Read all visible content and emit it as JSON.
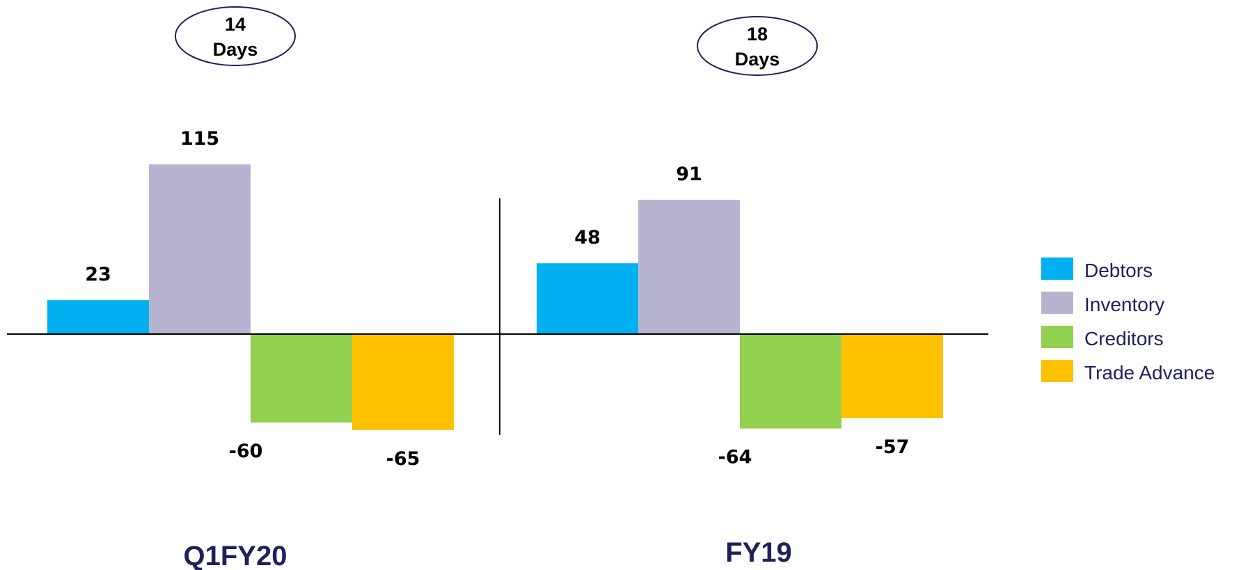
{
  "chart_data": {
    "type": "bar",
    "categories": [
      "Q1FY20",
      "FY19"
    ],
    "series": [
      {
        "name": "Debtors",
        "values": [
          23,
          48
        ],
        "labels": [
          "23",
          "48"
        ],
        "color": "#00b0f0"
      },
      {
        "name": "Inventory",
        "values": [
          115,
          91
        ],
        "labels": [
          "115",
          "91"
        ],
        "color": "#b7b4cf"
      },
      {
        "name": "Creditors",
        "values": [
          -60,
          -64
        ],
        "labels": [
          "-60",
          "-64"
        ],
        "color": "#92d050"
      },
      {
        "name": "Trade Advance",
        "values": [
          -65,
          -57
        ],
        "labels": [
          "-65",
          "-57"
        ],
        "color": "#ffc000"
      }
    ],
    "badges": [
      {
        "line1": "14",
        "line2": "Days"
      },
      {
        "line1": "18",
        "line2": "Days"
      }
    ],
    "legend_position": "right",
    "grid": false,
    "title": "",
    "xlabel": "",
    "ylabel": ""
  }
}
